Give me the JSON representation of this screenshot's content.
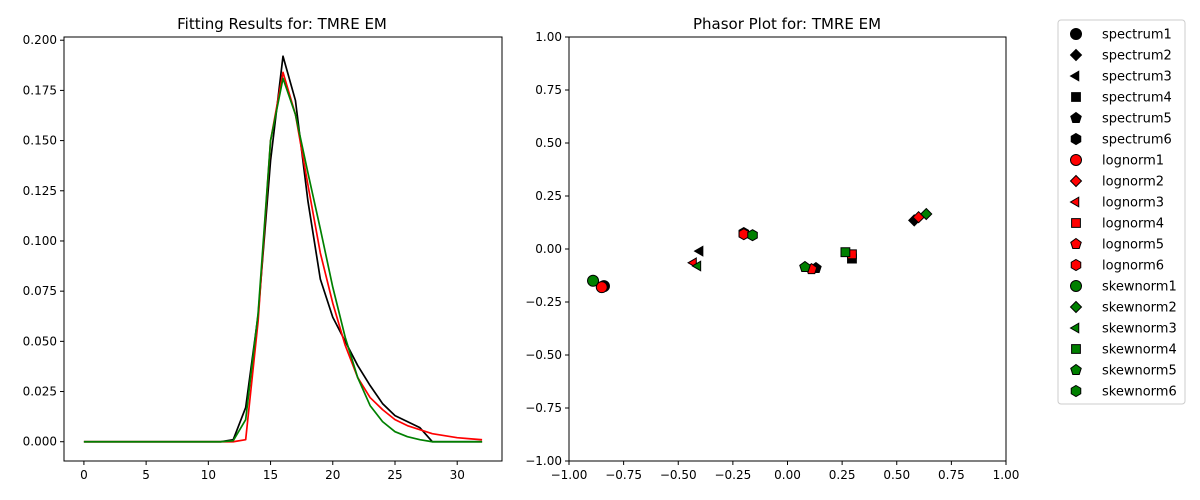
{
  "chart_data": [
    {
      "type": "line",
      "title": "Fitting Results for: TMRE EM",
      "xlabel": "",
      "ylabel": "",
      "xlim": [
        -1.6,
        33.6
      ],
      "ylim": [
        -0.0096,
        0.2016
      ],
      "x_ticks": [
        0,
        5,
        10,
        15,
        20,
        25,
        30
      ],
      "x_tick_labels": [
        "0",
        "5",
        "10",
        "15",
        "20",
        "25",
        "30"
      ],
      "y_ticks": [
        0.0,
        0.025,
        0.05,
        0.075,
        0.1,
        0.125,
        0.15,
        0.175,
        0.2
      ],
      "y_tick_labels": [
        "0.000",
        "0.025",
        "0.050",
        "0.075",
        "0.100",
        "0.125",
        "0.150",
        "0.175",
        "0.200"
      ],
      "grid": false,
      "x": [
        0,
        1,
        2,
        3,
        4,
        5,
        6,
        7,
        8,
        9,
        10,
        11,
        12,
        13,
        14,
        15,
        16,
        17,
        18,
        19,
        20,
        21,
        22,
        23,
        24,
        25,
        26,
        27,
        28,
        29,
        30,
        31,
        32
      ],
      "series": [
        {
          "color": "#000000",
          "values": [
            0,
            0,
            0,
            0,
            0,
            0,
            0,
            0,
            0,
            0,
            0,
            0,
            0.001,
            0.017,
            0.063,
            0.14,
            0.192,
            0.17,
            0.12,
            0.081,
            0.062,
            0.05,
            0.038,
            0.028,
            0.019,
            0.013,
            0.01,
            0.007,
            0,
            0,
            0,
            0,
            0
          ]
        },
        {
          "color": "#ff0000",
          "values": [
            0,
            0,
            0,
            0,
            0,
            0,
            0,
            0,
            0,
            0,
            0,
            0,
            0,
            0.001,
            0.06,
            0.15,
            0.184,
            0.163,
            0.128,
            0.094,
            0.069,
            0.048,
            0.032,
            0.022,
            0.016,
            0.011,
            0.008,
            0.006,
            0.004,
            0.003,
            0.002,
            0.0015,
            0.001
          ]
        },
        {
          "color": "#008000",
          "values": [
            0,
            0,
            0,
            0,
            0,
            0,
            0,
            0,
            0,
            0,
            0,
            0,
            0.0005,
            0.011,
            0.064,
            0.15,
            0.181,
            0.163,
            0.134,
            0.106,
            0.077,
            0.052,
            0.032,
            0.018,
            0.01,
            0.005,
            0.0025,
            0.001,
            0,
            0,
            0,
            0,
            0
          ]
        }
      ]
    },
    {
      "type": "scatter",
      "title": "Phasor Plot for: TMRE EM",
      "xlabel": "",
      "ylabel": "",
      "xlim": [
        -1.0,
        1.0
      ],
      "ylim": [
        -1.0,
        1.0
      ],
      "x_ticks": [
        -1.0,
        -0.75,
        -0.5,
        -0.25,
        0.0,
        0.25,
        0.5,
        0.75,
        1.0
      ],
      "x_tick_labels": [
        "−1.00",
        "−0.75",
        "−0.50",
        "−0.25",
        "0.00",
        "0.25",
        "0.50",
        "0.75",
        "1.00"
      ],
      "y_ticks": [
        -1.0,
        -0.75,
        -0.5,
        -0.25,
        0.0,
        0.25,
        0.5,
        0.75,
        1.0
      ],
      "y_tick_labels": [
        "−1.00",
        "−0.75",
        "−0.50",
        "−0.25",
        "0.00",
        "0.25",
        "0.50",
        "0.75",
        "1.00"
      ],
      "grid": false,
      "legend_position": "outside-right",
      "series": [
        {
          "name": "spectrum1",
          "color": "#000000",
          "marker": "circle",
          "x": -0.84,
          "y": -0.175
        },
        {
          "name": "spectrum2",
          "color": "#000000",
          "marker": "diamond",
          "x": 0.58,
          "y": 0.135
        },
        {
          "name": "spectrum3",
          "color": "#000000",
          "marker": "triangle-left",
          "x": -0.4,
          "y": -0.01
        },
        {
          "name": "spectrum4",
          "color": "#000000",
          "marker": "square",
          "x": 0.295,
          "y": -0.045
        },
        {
          "name": "spectrum5",
          "color": "#000000",
          "marker": "pentagon",
          "x": 0.13,
          "y": -0.09
        },
        {
          "name": "spectrum6",
          "color": "#000000",
          "marker": "hexagon",
          "x": -0.2,
          "y": 0.075
        },
        {
          "name": "lognorm1",
          "color": "#ff0000",
          "marker": "circle",
          "x": -0.85,
          "y": -0.18
        },
        {
          "name": "lognorm2",
          "color": "#ff0000",
          "marker": "diamond",
          "x": 0.6,
          "y": 0.15
        },
        {
          "name": "lognorm3",
          "color": "#ff0000",
          "marker": "triangle-left",
          "x": -0.43,
          "y": -0.065
        },
        {
          "name": "lognorm4",
          "color": "#ff0000",
          "marker": "square",
          "x": 0.295,
          "y": -0.025
        },
        {
          "name": "lognorm5",
          "color": "#ff0000",
          "marker": "pentagon",
          "x": 0.11,
          "y": -0.095
        },
        {
          "name": "lognorm6",
          "color": "#ff0000",
          "marker": "hexagon",
          "x": -0.2,
          "y": 0.07
        },
        {
          "name": "skewnorm1",
          "color": "#008000",
          "marker": "circle",
          "x": -0.89,
          "y": -0.15
        },
        {
          "name": "skewnorm2",
          "color": "#008000",
          "marker": "diamond",
          "x": 0.635,
          "y": 0.165
        },
        {
          "name": "skewnorm3",
          "color": "#008000",
          "marker": "triangle-left",
          "x": -0.41,
          "y": -0.08
        },
        {
          "name": "skewnorm4",
          "color": "#008000",
          "marker": "square",
          "x": 0.265,
          "y": -0.015
        },
        {
          "name": "skewnorm5",
          "color": "#008000",
          "marker": "pentagon",
          "x": 0.08,
          "y": -0.085
        },
        {
          "name": "skewnorm6",
          "color": "#008000",
          "marker": "hexagon",
          "x": -0.16,
          "y": 0.065
        }
      ]
    }
  ]
}
